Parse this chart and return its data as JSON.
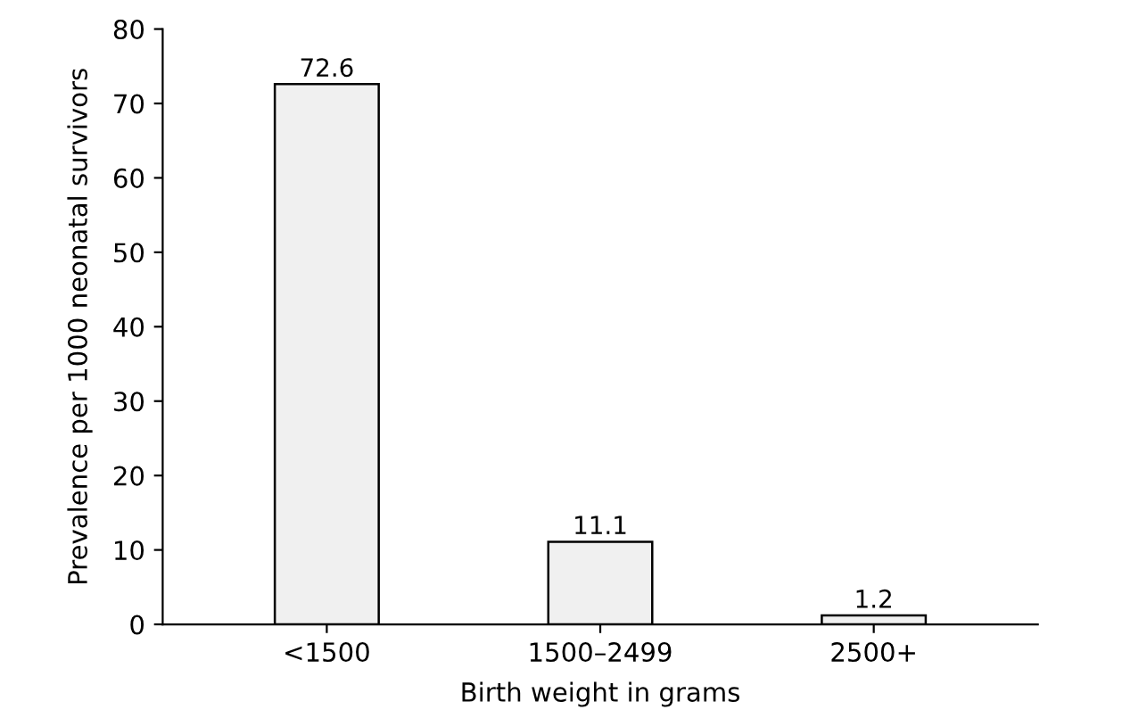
{
  "chart_data": {
    "type": "bar",
    "xlabel": "Birth weight in grams",
    "ylabel": "Prevalence per 1000 neonatal survivors",
    "categories": [
      "<1500",
      "1500–2499",
      "2500+"
    ],
    "values": [
      72.6,
      11.1,
      1.2
    ],
    "color": "#f0f0f0",
    "ylim": [
      0,
      80
    ],
    "yticks": [
      0,
      10,
      20,
      30,
      40,
      50,
      60,
      70,
      80
    ],
    "grid": false,
    "data_labels": true
  }
}
